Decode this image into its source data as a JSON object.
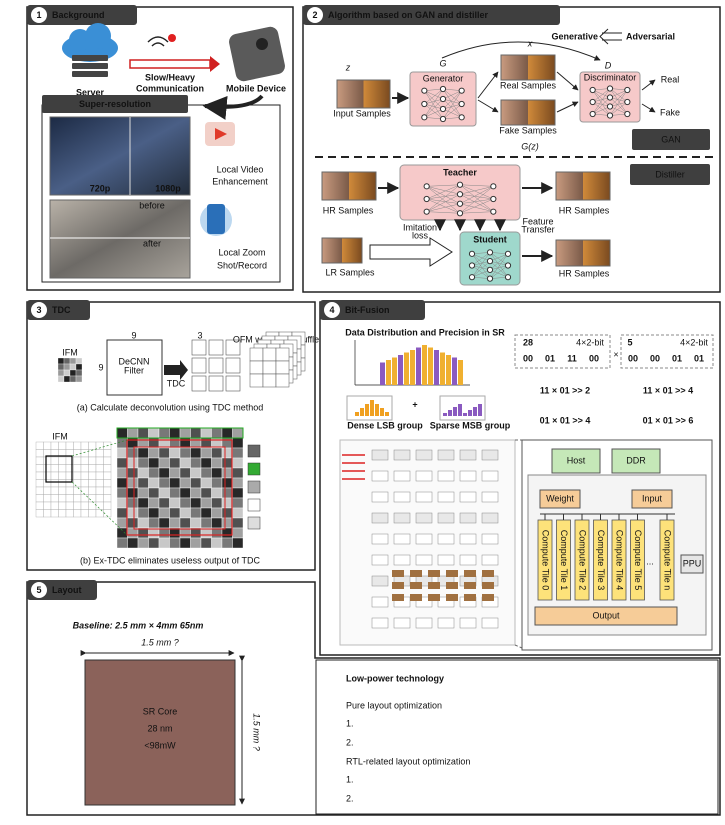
{
  "background": {
    "number": "1",
    "title": "Background",
    "server": "Server",
    "link": [
      "Slow/Heavy",
      "Communication"
    ],
    "device": "Mobile Device",
    "subtitle": "Super-resolution",
    "res_low": "720p",
    "res_high": "1080p",
    "video": [
      "Local Video",
      "Enhancement"
    ],
    "before": "before",
    "after": "after",
    "zoom": [
      "Local Zoom",
      "Shot/Record"
    ]
  },
  "algorithm": {
    "number": "2",
    "title": "Algorithm based on GAN and distiller",
    "z": "z",
    "g": "G",
    "x": "x",
    "d": "D",
    "generative": "Generative",
    "adversarial": "Adversarial",
    "input": "Input Samples",
    "generator": "Generator",
    "real_samples": "Real Samples",
    "fake_samples": "Fake Samples",
    "discriminator": "Discriminator",
    "real": "Real",
    "fake": "Fake",
    "gz": "G(z)",
    "gan": "GAN",
    "distiller": "Distiller",
    "teacher": "Teacher",
    "student": "Student",
    "hr": "HR Samples",
    "lr": "LR Samples",
    "imitation": [
      "Imitation",
      "loss"
    ],
    "feature": [
      "Feature",
      "Transfer"
    ]
  },
  "tdc": {
    "number": "3",
    "title": "TDC",
    "ifm": "IFM",
    "filter": [
      "DeCNN",
      "Filter"
    ],
    "dim_9": "9",
    "dim_3": "3",
    "tdc_label": "TDC",
    "ofm": "OFM w/o PixelShuffle",
    "caption_a": "(a) Calculate deconvolution using TDC method",
    "caption_b": "(b) Ex-TDC eliminates useless output of TDC"
  },
  "bit_fusion": {
    "number": "4",
    "title": "Bit-Fusion",
    "chart_title": "Data Distribution and Precision in SR",
    "dense": "Dense LSB group",
    "sparse": "Sparse MSB group",
    "a": "28",
    "b": "5",
    "precision": "4×2-bit",
    "a_bits": [
      "00",
      "01",
      "11",
      "00"
    ],
    "b_bits": [
      "00",
      "00",
      "01",
      "01"
    ],
    "times": "×",
    "plus": "+",
    "products": [
      "11 × 01 >> 2",
      "11 × 01 >> 4",
      "01 × 01 >> 4",
      "01 × 01 >> 6"
    ],
    "host": "Host",
    "ddr": "DDR",
    "weight": "Weight",
    "input": "Input",
    "tiles": [
      "Compute Tile 0",
      "Compute Tile 1",
      "Compute Tile 2",
      "Compute Tile 3",
      "Compute Tile 4",
      "Compute Tile 5",
      "Compute Tile n"
    ],
    "ellipsis": "...",
    "ppu": "PPU",
    "output": "Output"
  },
  "layout": {
    "number": "5",
    "title": "Layout",
    "baseline": "Baseline: 2.5 mm × 4mm 65nm",
    "width": "1.5 mm ?",
    "height": "1.5 mm ?",
    "core": [
      "SR Core",
      "28 nm",
      "<98mW"
    ],
    "heading": "Low-power technology",
    "items": [
      {
        "title": "Pure layout optimization",
        "points": [
          "1.",
          "2."
        ]
      },
      {
        "title": "RTL-related layout optimization",
        "points": [
          "1.",
          "2."
        ]
      }
    ]
  }
}
